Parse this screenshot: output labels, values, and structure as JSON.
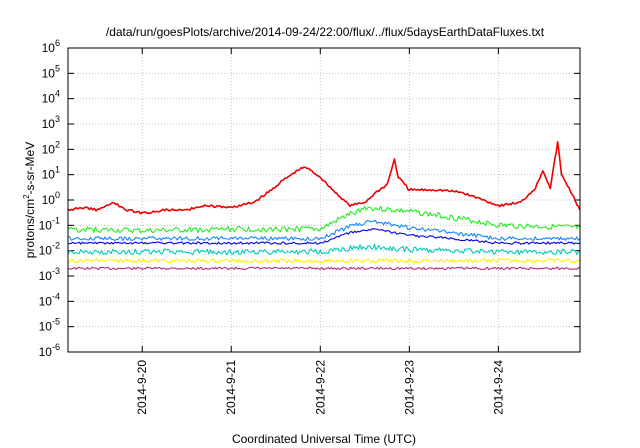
{
  "chart_data": {
    "type": "line",
    "title": "/data/run/goesPlots/archive/2014-09-24/22:00/flux/../flux/5daysEarthDataFluxes.txt",
    "xlabel": "Coordinated Universal Time (UTC)",
    "ylabel": {
      "prefix": "protons/cm",
      "sup": "2",
      "suffix": "-s-sr-MeV"
    },
    "y_scale": "log",
    "ylim": [
      1e-06,
      1000000.0
    ],
    "y_ticks": [
      {
        "value": 1e-06,
        "base": "10",
        "exp": "-6"
      },
      {
        "value": 1e-05,
        "base": "10",
        "exp": "-5"
      },
      {
        "value": 0.0001,
        "base": "10",
        "exp": "-4"
      },
      {
        "value": 0.001,
        "base": "10",
        "exp": "-3"
      },
      {
        "value": 0.01,
        "base": "10",
        "exp": "-2"
      },
      {
        "value": 0.1,
        "base": "10",
        "exp": "-1"
      },
      {
        "value": 1,
        "base": "10",
        "exp": "0"
      },
      {
        "value": 10,
        "base": "10",
        "exp": "1"
      },
      {
        "value": 100,
        "base": "10",
        "exp": "2"
      },
      {
        "value": 1000,
        "base": "10",
        "exp": "3"
      },
      {
        "value": 10000,
        "base": "10",
        "exp": "4"
      },
      {
        "value": 100000,
        "base": "10",
        "exp": "5"
      },
      {
        "value": 1000000,
        "base": "10",
        "exp": "6"
      }
    ],
    "xlim": [
      "2014-09-19 04:00",
      "2014-09-24 22:00"
    ],
    "x_ticks": [
      {
        "value": "2014-09-20 00:00",
        "label": "2014-9-20"
      },
      {
        "value": "2014-09-21 00:00",
        "label": "2014-9-21"
      },
      {
        "value": "2014-09-22 00:00",
        "label": "2014-9-22"
      },
      {
        "value": "2014-09-23 00:00",
        "label": "2014-9-23"
      },
      {
        "value": "2014-09-24 00:00",
        "label": "2014-9-24"
      }
    ],
    "grid": true,
    "series": [
      {
        "color": "#aa3377",
        "values": [
          [
            "2014-09-19 04:00",
            0.002
          ],
          [
            "2014-09-20 00:00",
            0.002
          ],
          [
            "2014-09-21 00:00",
            0.002
          ],
          [
            "2014-09-22 00:00",
            0.002
          ],
          [
            "2014-09-23 00:00",
            0.002
          ],
          [
            "2014-09-24 00:00",
            0.002
          ],
          [
            "2014-09-24 22:00",
            0.002
          ]
        ]
      },
      {
        "color": "#ffee00",
        "values": [
          [
            "2014-09-19 04:00",
            0.004
          ],
          [
            "2014-09-20 00:00",
            0.004
          ],
          [
            "2014-09-21 00:00",
            0.004
          ],
          [
            "2014-09-22 00:00",
            0.004
          ],
          [
            "2014-09-23 00:00",
            0.004
          ],
          [
            "2014-09-24 00:00",
            0.004
          ],
          [
            "2014-09-24 22:00",
            0.004
          ]
        ]
      },
      {
        "color": "#00ccbb",
        "values": [
          [
            "2014-09-19 04:00",
            0.009
          ],
          [
            "2014-09-21 00:00",
            0.009
          ],
          [
            "2014-09-22 00:00",
            0.009
          ],
          [
            "2014-09-22 12:00",
            0.015
          ],
          [
            "2014-09-23 00:00",
            0.011
          ],
          [
            "2014-09-24 00:00",
            0.009
          ],
          [
            "2014-09-24 22:00",
            0.009
          ]
        ]
      },
      {
        "color": "#0000ee",
        "values": [
          [
            "2014-09-19 04:00",
            0.02
          ],
          [
            "2014-09-20 00:00",
            0.02
          ],
          [
            "2014-09-21 00:00",
            0.02
          ],
          [
            "2014-09-22 00:00",
            0.02
          ],
          [
            "2014-09-22 08:00",
            0.05
          ],
          [
            "2014-09-22 14:00",
            0.07
          ],
          [
            "2014-09-23 00:00",
            0.04
          ],
          [
            "2014-09-23 12:00",
            0.03
          ],
          [
            "2014-09-24 00:00",
            0.02
          ],
          [
            "2014-09-24 22:00",
            0.02
          ]
        ]
      },
      {
        "color": "#1188ff",
        "values": [
          [
            "2014-09-19 04:00",
            0.03
          ],
          [
            "2014-09-20 00:00",
            0.03
          ],
          [
            "2014-09-21 00:00",
            0.03
          ],
          [
            "2014-09-22 00:00",
            0.03
          ],
          [
            "2014-09-22 08:00",
            0.09
          ],
          [
            "2014-09-22 14:00",
            0.15
          ],
          [
            "2014-09-23 00:00",
            0.08
          ],
          [
            "2014-09-23 12:00",
            0.05
          ],
          [
            "2014-09-24 00:00",
            0.03
          ],
          [
            "2014-09-24 22:00",
            0.03
          ]
        ]
      },
      {
        "color": "#22ee22",
        "values": [
          [
            "2014-09-19 04:00",
            0.07
          ],
          [
            "2014-09-20 00:00",
            0.06
          ],
          [
            "2014-09-21 00:00",
            0.07
          ],
          [
            "2014-09-22 00:00",
            0.07
          ],
          [
            "2014-09-22 06:00",
            0.2
          ],
          [
            "2014-09-22 12:00",
            0.5
          ],
          [
            "2014-09-23 00:00",
            0.35
          ],
          [
            "2014-09-23 12:00",
            0.2
          ],
          [
            "2014-09-24 00:00",
            0.1
          ],
          [
            "2014-09-24 22:00",
            0.08
          ]
        ]
      },
      {
        "color": "#ee0000",
        "values": [
          [
            "2014-09-19 04:00",
            0.4
          ],
          [
            "2014-09-19 08:00",
            0.5
          ],
          [
            "2014-09-19 12:00",
            0.4
          ],
          [
            "2014-09-19 16:00",
            0.8
          ],
          [
            "2014-09-19 20:00",
            0.4
          ],
          [
            "2014-09-20 00:00",
            0.3
          ],
          [
            "2014-09-20 06:00",
            0.4
          ],
          [
            "2014-09-20 12:00",
            0.4
          ],
          [
            "2014-09-20 16:00",
            0.6
          ],
          [
            "2014-09-21 00:00",
            0.5
          ],
          [
            "2014-09-21 06:00",
            0.8
          ],
          [
            "2014-09-21 10:00",
            2
          ],
          [
            "2014-09-21 14:00",
            6
          ],
          [
            "2014-09-21 18:00",
            15
          ],
          [
            "2014-09-21 20:00",
            20
          ],
          [
            "2014-09-22 00:00",
            8
          ],
          [
            "2014-09-22 04:00",
            2
          ],
          [
            "2014-09-22 08:00",
            0.6
          ],
          [
            "2014-09-22 12:00",
            0.8
          ],
          [
            "2014-09-22 15:00",
            2
          ],
          [
            "2014-09-22 18:00",
            4
          ],
          [
            "2014-09-22 20:00",
            40
          ],
          [
            "2014-09-22 21:00",
            8
          ],
          [
            "2014-09-23 00:00",
            2.5
          ],
          [
            "2014-09-23 08:00",
            2.5
          ],
          [
            "2014-09-23 14:00",
            2
          ],
          [
            "2014-09-23 20:00",
            1
          ],
          [
            "2014-09-24 00:00",
            0.6
          ],
          [
            "2014-09-24 06:00",
            0.8
          ],
          [
            "2014-09-24 10:00",
            3
          ],
          [
            "2014-09-24 12:00",
            15
          ],
          [
            "2014-09-24 14:00",
            3
          ],
          [
            "2014-09-24 16:00",
            200
          ],
          [
            "2014-09-24 17:00",
            10
          ],
          [
            "2014-09-24 19:00",
            3
          ],
          [
            "2014-09-24 22:00",
            0.4
          ]
        ]
      }
    ]
  }
}
